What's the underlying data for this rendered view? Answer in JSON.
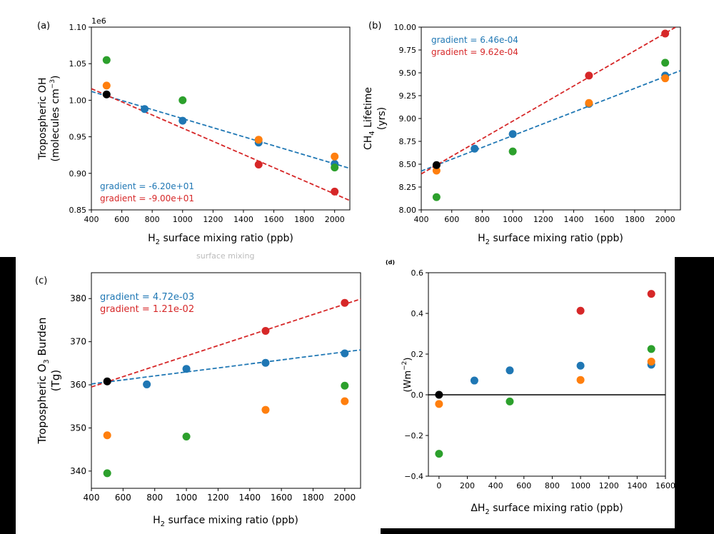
{
  "figure": {
    "overlap_text": "surface mixing"
  },
  "colors": {
    "blue": "#1f77b4",
    "orange": "#ff7f0e",
    "green": "#2ca02c",
    "red": "#d62728",
    "black": "#000000"
  },
  "chart_data": [
    {
      "id": "a",
      "type": "scatter",
      "panel_label": "(a)",
      "title": "",
      "ylabel_main": "Tropospheric OH",
      "ylabel_sub": "(molecules cm",
      "ylabel_sup": "−3",
      "ylabel_close": ")",
      "xlabel_pre": "H",
      "xlabel_sub": "2",
      "xlabel_post": " surface mixing ratio (ppb)",
      "offset_text": "1e6",
      "xlim": [
        400,
        2100
      ],
      "ylim": [
        0.85,
        1.1
      ],
      "xticks": [
        400,
        600,
        800,
        1000,
        1200,
        1400,
        1600,
        1800,
        2000
      ],
      "yticks": [
        0.85,
        0.9,
        0.95,
        1.0,
        1.05,
        1.1
      ],
      "ytick_labels": [
        "0.85",
        "0.90",
        "0.95",
        "1.00",
        "1.05",
        "1.10"
      ],
      "series": [
        {
          "name": "blue",
          "x": [
            750,
            1000,
            1500,
            2000
          ],
          "y": [
            0.988,
            0.972,
            0.942,
            0.913
          ]
        },
        {
          "name": "orange",
          "x": [
            500,
            1500,
            2000
          ],
          "y": [
            1.02,
            0.946,
            0.923
          ]
        },
        {
          "name": "green",
          "x": [
            500,
            1000,
            2000
          ],
          "y": [
            1.055,
            1.0,
            0.908
          ]
        },
        {
          "name": "red",
          "x": [
            1500,
            2000
          ],
          "y": [
            0.912,
            0.875
          ]
        },
        {
          "name": "black",
          "x": [
            500
          ],
          "y": [
            1.008
          ]
        }
      ],
      "fits": [
        {
          "name": "blue",
          "x": [
            400,
            2100
          ],
          "y": [
            1.012,
            0.9068
          ]
        },
        {
          "name": "red",
          "x": [
            400,
            2100
          ],
          "y": [
            1.0158,
            0.8628
          ]
        }
      ],
      "annotations": [
        {
          "color": "blue",
          "text": "gradient = -6.20e+01"
        },
        {
          "color": "red",
          "text": "gradient = -9.00e+01"
        }
      ]
    },
    {
      "id": "b",
      "type": "scatter",
      "panel_label": "(b)",
      "title": "",
      "ylabel_main": "CH",
      "ylabel_main_sub": "4",
      "ylabel_main_post": " Lifetime",
      "ylabel_sub": "(yrs)",
      "xlabel_pre": "H",
      "xlabel_sub": "2",
      "xlabel_post": " surface mixing ratio (ppb)",
      "xlim": [
        400,
        2100
      ],
      "ylim": [
        8.0,
        10.0
      ],
      "xticks": [
        400,
        600,
        800,
        1000,
        1200,
        1400,
        1600,
        1800,
        2000
      ],
      "yticks": [
        8.0,
        8.25,
        8.5,
        8.75,
        9.0,
        9.25,
        9.5,
        9.75,
        10.0
      ],
      "ytick_labels": [
        "8.00",
        "8.25",
        "8.50",
        "8.75",
        "9.00",
        "9.25",
        "9.50",
        "9.75",
        "10.00"
      ],
      "series": [
        {
          "name": "blue",
          "x": [
            750,
            1000,
            1500,
            2000
          ],
          "y": [
            8.67,
            8.83,
            9.16,
            9.47
          ]
        },
        {
          "name": "orange",
          "x": [
            500,
            1500,
            2000
          ],
          "y": [
            8.43,
            9.17,
            9.44
          ]
        },
        {
          "name": "green",
          "x": [
            500,
            1000,
            2000
          ],
          "y": [
            8.14,
            8.64,
            9.61
          ]
        },
        {
          "name": "red",
          "x": [
            1500,
            2000
          ],
          "y": [
            9.47,
            9.93
          ]
        },
        {
          "name": "black",
          "x": [
            500
          ],
          "y": [
            8.49
          ]
        }
      ],
      "fits": [
        {
          "name": "blue",
          "x": [
            400,
            2100
          ],
          "y": [
            8.425,
            9.524
          ]
        },
        {
          "name": "red",
          "x": [
            400,
            2100
          ],
          "y": [
            8.394,
            10.03
          ]
        }
      ],
      "annotations": [
        {
          "color": "blue",
          "text": "gradient = 6.46e-04"
        },
        {
          "color": "red",
          "text": "gradient = 9.62e-04"
        }
      ]
    },
    {
      "id": "c",
      "type": "scatter",
      "panel_label": "(c)",
      "title": "",
      "ylabel_main": "Tropospheric O",
      "ylabel_main_sub": "3",
      "ylabel_main_post": " Burden",
      "ylabel_sub": "(Tg)",
      "xlabel_pre": "H",
      "xlabel_sub": "2",
      "xlabel_post": " surface mixing ratio (ppb)",
      "xlim": [
        400,
        2100
      ],
      "ylim": [
        336,
        386
      ],
      "xticks": [
        400,
        600,
        800,
        1000,
        1200,
        1400,
        1600,
        1800,
        2000
      ],
      "yticks": [
        340,
        350,
        360,
        370,
        380
      ],
      "ytick_labels": [
        "340",
        "350",
        "360",
        "370",
        "380"
      ],
      "series": [
        {
          "name": "blue",
          "x": [
            750,
            1000,
            1500,
            2000
          ],
          "y": [
            360.1,
            363.7,
            365.1,
            367.3
          ]
        },
        {
          "name": "orange",
          "x": [
            500,
            1500,
            2000
          ],
          "y": [
            348.3,
            354.2,
            356.2
          ]
        },
        {
          "name": "green",
          "x": [
            500,
            1000,
            2000
          ],
          "y": [
            339.5,
            348.0,
            359.8
          ]
        },
        {
          "name": "red",
          "x": [
            1500,
            2000
          ],
          "y": [
            372.5,
            379.0
          ]
        },
        {
          "name": "black",
          "x": [
            500
          ],
          "y": [
            360.8
          ]
        }
      ],
      "fits": [
        {
          "name": "blue",
          "x": [
            400,
            2100
          ],
          "y": [
            360.2,
            368.1
          ]
        },
        {
          "name": "red",
          "x": [
            400,
            2100
          ],
          "y": [
            359.5,
            379.9
          ]
        }
      ],
      "annotations": [
        {
          "color": "blue",
          "text": "gradient = 4.72e-03"
        },
        {
          "color": "red",
          "text": "gradient = 1.21e-02"
        }
      ]
    },
    {
      "id": "d",
      "type": "scatter",
      "panel_label": "(d)",
      "title": "",
      "ylabel_main": "(Wm",
      "ylabel_sup": "−2",
      "ylabel_close": ")",
      "xlabel_pre": "ΔH",
      "xlabel_sub": "2",
      "xlabel_post": " surface mixing ratio (ppb)",
      "xlim": [
        -75,
        1600
      ],
      "ylim": [
        -0.4,
        0.6
      ],
      "xticks": [
        0,
        200,
        400,
        600,
        800,
        1000,
        1200,
        1400,
        1600
      ],
      "yticks": [
        -0.4,
        -0.2,
        0.0,
        0.2,
        0.4,
        0.6
      ],
      "ytick_labels": [
        "−0.4",
        "−0.2",
        "0.0",
        "0.2",
        "0.4",
        "0.6"
      ],
      "zero_line": 0.0,
      "series": [
        {
          "name": "blue",
          "x": [
            250,
            500,
            1000,
            1500
          ],
          "y": [
            0.07,
            0.12,
            0.143,
            0.148
          ]
        },
        {
          "name": "orange",
          "x": [
            0,
            1000,
            1500
          ],
          "y": [
            -0.045,
            0.073,
            0.163
          ]
        },
        {
          "name": "green",
          "x": [
            0,
            500,
            1500
          ],
          "y": [
            -0.29,
            -0.033,
            0.225
          ]
        },
        {
          "name": "red",
          "x": [
            1000,
            1500
          ],
          "y": [
            0.413,
            0.496
          ]
        },
        {
          "name": "black",
          "x": [
            0
          ],
          "y": [
            0.0
          ]
        }
      ],
      "fits": [],
      "annotations": []
    }
  ]
}
